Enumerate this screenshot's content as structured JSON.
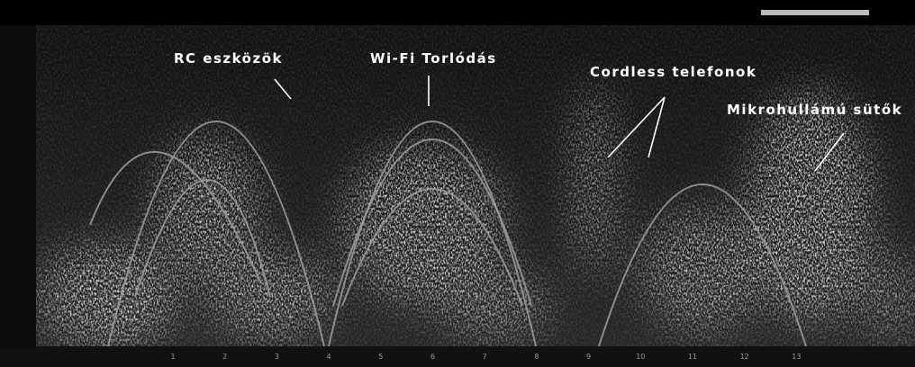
{
  "annotations": [
    "RC eszközök",
    "Wi-Fi Torlódás",
    "Cordless telefonok",
    "Mikrohullámú sütők"
  ],
  "x_axis": {
    "ticks": [
      "1",
      "2",
      "3",
      "4",
      "5",
      "6",
      "7",
      "8",
      "9",
      "10",
      "11",
      "12",
      "13"
    ]
  }
}
